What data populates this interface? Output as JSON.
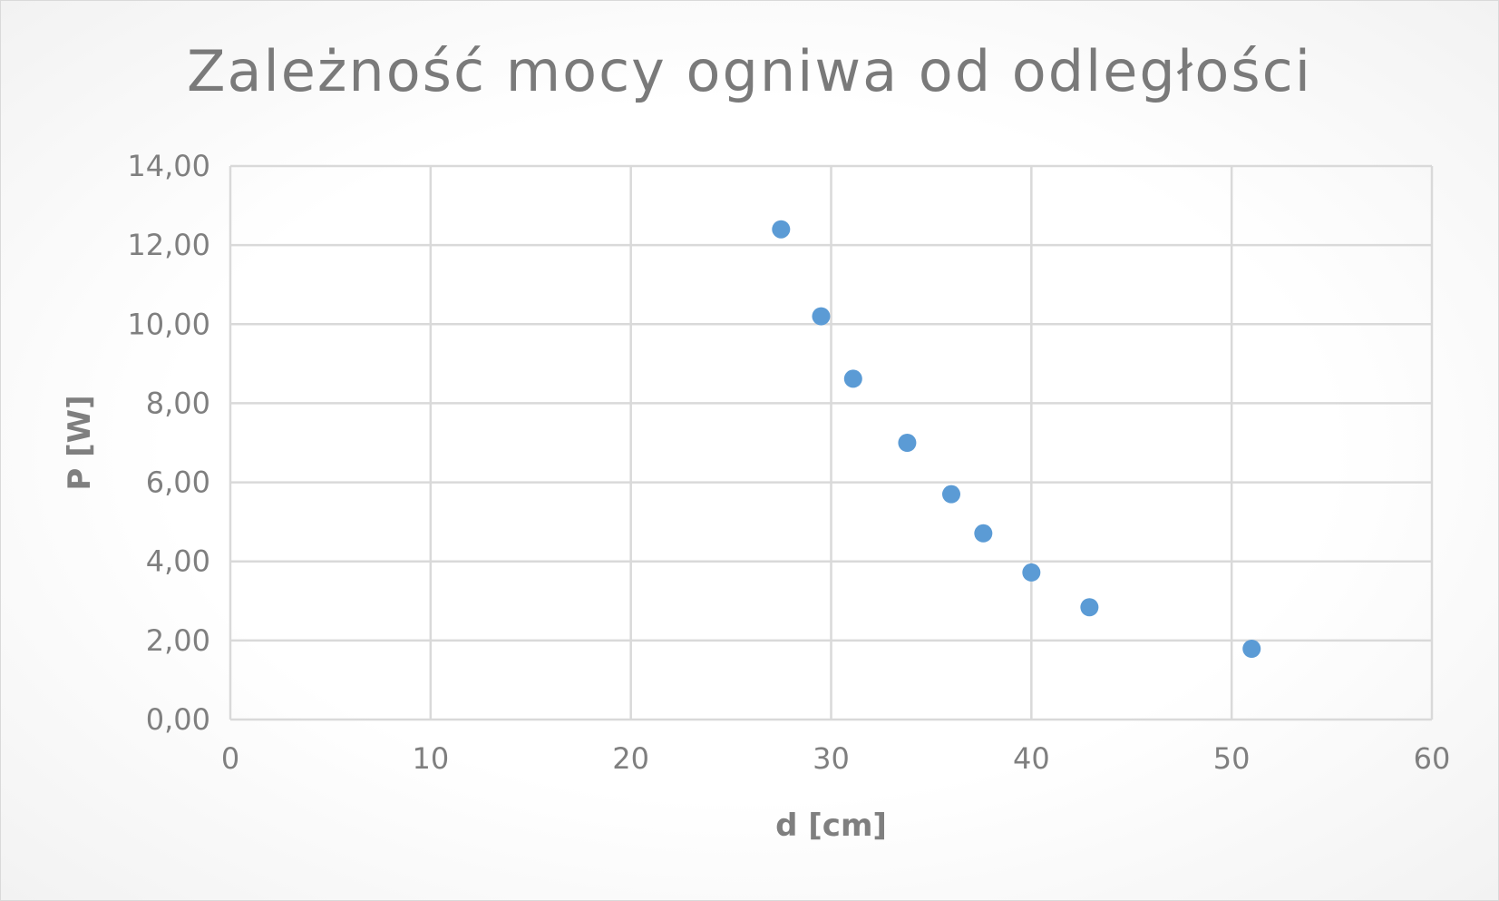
{
  "chart_data": {
    "type": "scatter",
    "title": "Zależność mocy ogniwa od odległości",
    "xlabel": "d [cm]",
    "ylabel": "P [W]",
    "xlim": [
      0,
      60
    ],
    "ylim": [
      0,
      14
    ],
    "x_ticks": [
      "0",
      "10",
      "20",
      "30",
      "40",
      "50",
      "60"
    ],
    "y_ticks": [
      "0,00",
      "2,00",
      "4,00",
      "6,00",
      "8,00",
      "10,00",
      "12,00",
      "14,00"
    ],
    "grid": true,
    "legend": "none",
    "series": [
      {
        "color": "#5b9bd5",
        "points": [
          {
            "x": 27.5,
            "y": 12.4
          },
          {
            "x": 29.5,
            "y": 10.2
          },
          {
            "x": 31.1,
            "y": 8.62
          },
          {
            "x": 33.8,
            "y": 7.0
          },
          {
            "x": 36.0,
            "y": 5.7
          },
          {
            "x": 37.6,
            "y": 4.71
          },
          {
            "x": 40.0,
            "y": 3.72
          },
          {
            "x": 42.9,
            "y": 2.84
          },
          {
            "x": 51.0,
            "y": 1.79
          }
        ]
      }
    ]
  },
  "colors": {
    "title": "#7a7a7a",
    "text": "#7f7f7f",
    "grid": "#d9d9d9",
    "marker": "#5b9bd5"
  }
}
